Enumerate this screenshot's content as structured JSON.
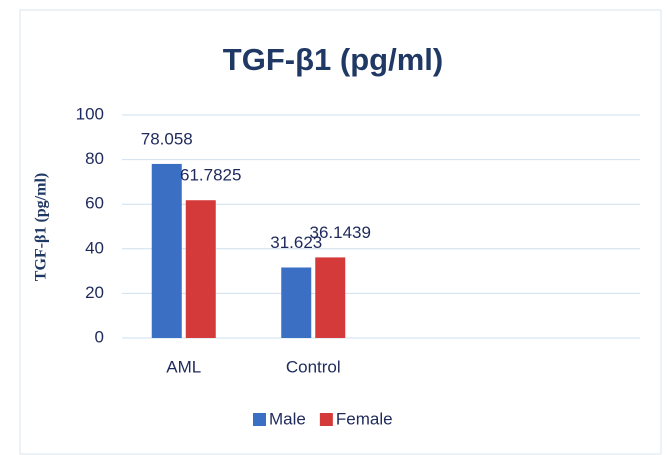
{
  "chart_data": {
    "type": "bar",
    "title": "TGF-β1 (pg/ml)",
    "y_label": "TGF-β1 (pg/ml)",
    "categories": [
      "AML",
      "Control",
      null,
      null
    ],
    "series": [
      {
        "name": "Male",
        "color": "#3a6fc4",
        "values": [
          78.058,
          31.623,
          null,
          null
        ]
      },
      {
        "name": "Female",
        "color": "#d43a3a",
        "values": [
          61.7825,
          36.1439,
          null,
          null
        ]
      }
    ],
    "ylim": [
      0,
      100
    ],
    "yticks": [
      0,
      20,
      40,
      60,
      80,
      100
    ],
    "grid": true,
    "legend": "bottom"
  }
}
